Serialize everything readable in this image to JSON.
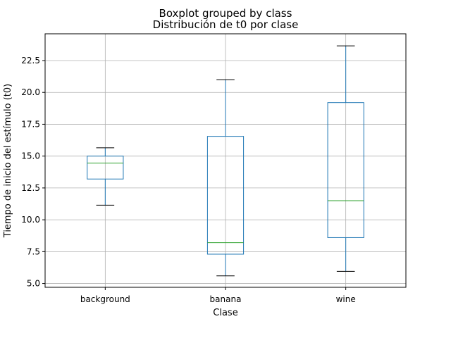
{
  "chart_data": {
    "type": "box",
    "suptitle": "Boxplot grouped by class",
    "title": "Distribución de t0 por clase",
    "xlabel": "Clase",
    "ylabel": "Tiempo de inicio del estímulo (t0)",
    "ylim": [
      4.7,
      24.6
    ],
    "yticks": [
      5.0,
      7.5,
      10.0,
      12.5,
      15.0,
      17.5,
      20.0,
      22.5
    ],
    "ytick_labels": [
      "5.0",
      "7.5",
      "10.0",
      "12.5",
      "15.0",
      "17.5",
      "20.0",
      "22.5"
    ],
    "grid": true,
    "categories": [
      "background",
      "banana",
      "wine"
    ],
    "boxes": [
      {
        "category": "background",
        "whisker_low": 11.15,
        "q1": 13.2,
        "median": 14.45,
        "q3": 15.0,
        "whisker_high": 15.65
      },
      {
        "category": "banana",
        "whisker_low": 5.6,
        "q1": 7.3,
        "median": 8.2,
        "q3": 16.55,
        "whisker_high": 21.0
      },
      {
        "category": "wine",
        "whisker_low": 5.95,
        "q1": 8.6,
        "median": 11.5,
        "q3": 19.2,
        "whisker_high": 23.65
      }
    ],
    "colors": {
      "box": "#1f77b4",
      "median": "#2ca02c",
      "cap": "#000000",
      "grid": "#b0b0b0"
    }
  }
}
